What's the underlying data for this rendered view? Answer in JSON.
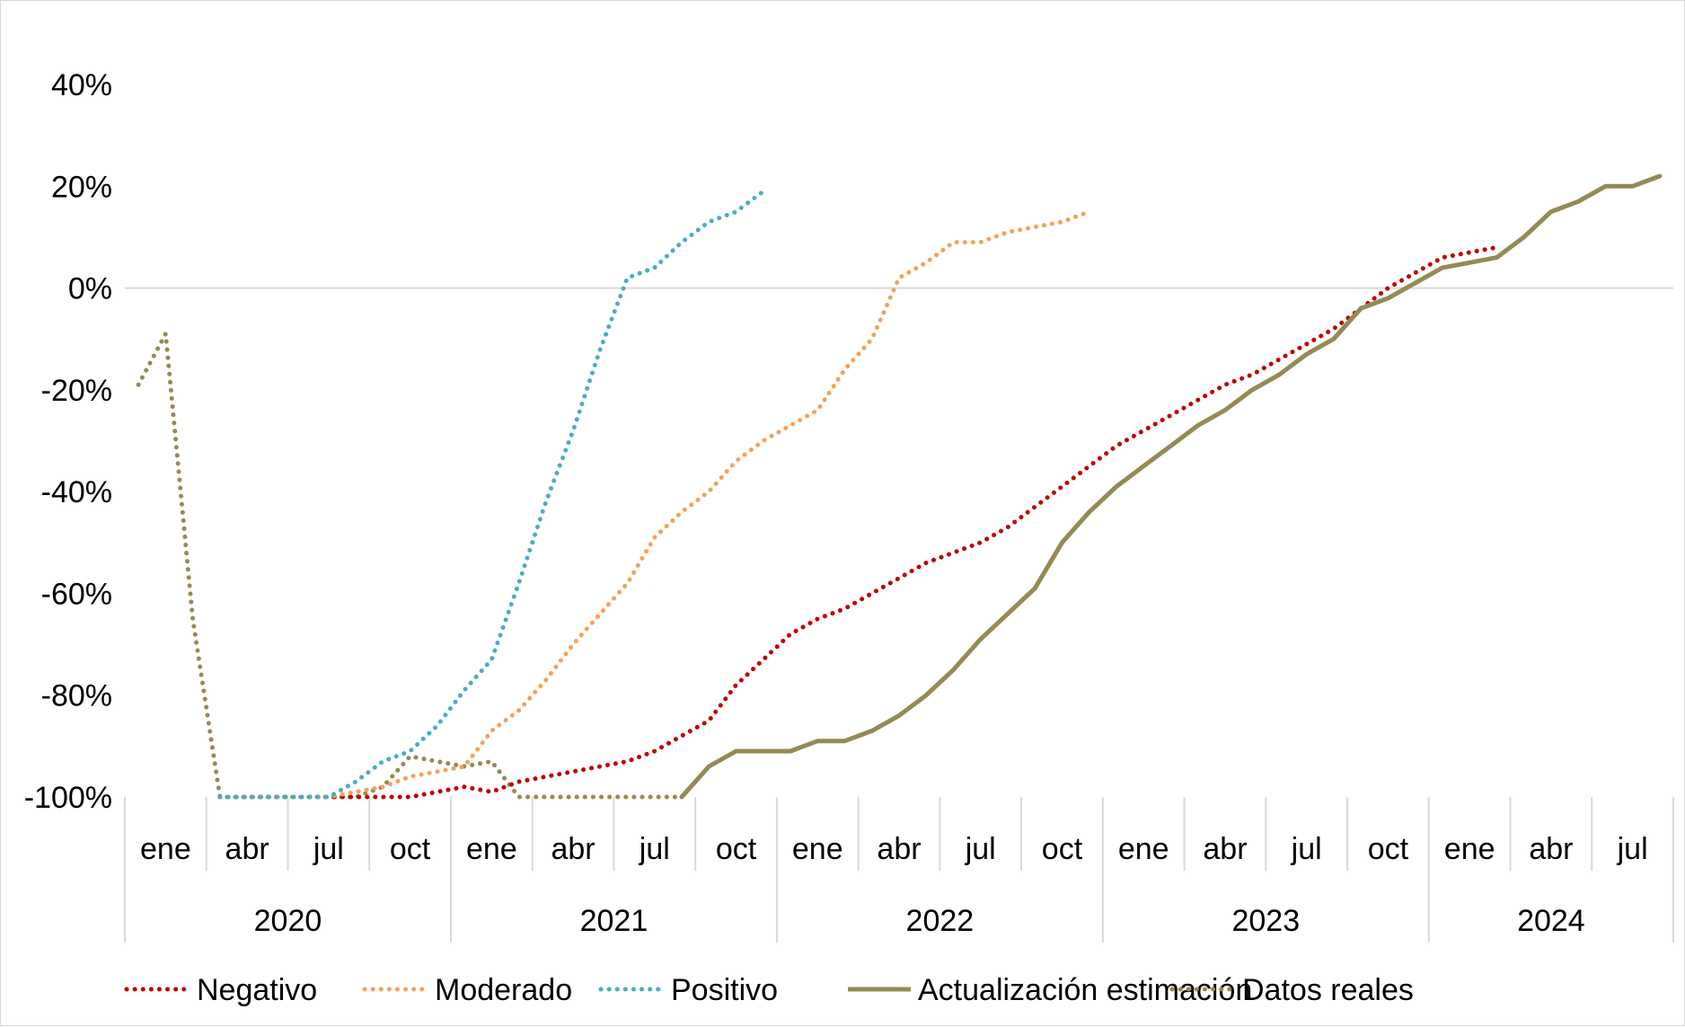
{
  "chart_data": {
    "type": "line",
    "title": "",
    "xlabel": "",
    "ylabel": "",
    "ylim": [
      -100,
      40
    ],
    "yticks": [
      {
        "value": 40,
        "label": "40%"
      },
      {
        "value": 20,
        "label": "20%"
      },
      {
        "value": 0,
        "label": "0%"
      },
      {
        "value": -20,
        "label": "-20%"
      },
      {
        "value": -40,
        "label": "-40%"
      },
      {
        "value": -60,
        "label": "-60%"
      },
      {
        "value": -80,
        "label": "-80%"
      },
      {
        "value": -100,
        "label": "-100%"
      }
    ],
    "x_start": "2020-01",
    "x_end": "2024-09",
    "month_ticks": [
      {
        "month": "2020-01",
        "label": "ene"
      },
      {
        "month": "2020-04",
        "label": "abr"
      },
      {
        "month": "2020-07",
        "label": "jul"
      },
      {
        "month": "2020-10",
        "label": "oct"
      },
      {
        "month": "2021-01",
        "label": "ene"
      },
      {
        "month": "2021-04",
        "label": "abr"
      },
      {
        "month": "2021-07",
        "label": "jul"
      },
      {
        "month": "2021-10",
        "label": "oct"
      },
      {
        "month": "2022-01",
        "label": "ene"
      },
      {
        "month": "2022-04",
        "label": "abr"
      },
      {
        "month": "2022-07",
        "label": "jul"
      },
      {
        "month": "2022-10",
        "label": "oct"
      },
      {
        "month": "2023-01",
        "label": "ene"
      },
      {
        "month": "2023-04",
        "label": "abr"
      },
      {
        "month": "2023-07",
        "label": "jul"
      },
      {
        "month": "2023-10",
        "label": "oct"
      },
      {
        "month": "2024-01",
        "label": "ene"
      },
      {
        "month": "2024-04",
        "label": "abr"
      },
      {
        "month": "2024-07",
        "label": "jul"
      }
    ],
    "years": [
      "2020",
      "2021",
      "2022",
      "2023",
      "2024"
    ],
    "legend_position": "bottom",
    "series": [
      {
        "name": "Negativo",
        "color": "#c00000",
        "style": "dotted",
        "points": [
          [
            "2020-04",
            -100
          ],
          [
            "2020-05",
            -100
          ],
          [
            "2020-06",
            -100
          ],
          [
            "2020-07",
            -100
          ],
          [
            "2020-08",
            -100
          ],
          [
            "2020-09",
            -100
          ],
          [
            "2020-10",
            -100
          ],
          [
            "2020-11",
            -100
          ],
          [
            "2020-12",
            -99
          ],
          [
            "2021-01",
            -98
          ],
          [
            "2021-02",
            -99
          ],
          [
            "2021-03",
            -97
          ],
          [
            "2021-04",
            -96
          ],
          [
            "2021-05",
            -95
          ],
          [
            "2021-06",
            -94
          ],
          [
            "2021-07",
            -93
          ],
          [
            "2021-08",
            -91
          ],
          [
            "2021-09",
            -88
          ],
          [
            "2021-10",
            -85
          ],
          [
            "2021-11",
            -78
          ],
          [
            "2021-12",
            -73
          ],
          [
            "2022-01",
            -68
          ],
          [
            "2022-02",
            -65
          ],
          [
            "2022-03",
            -63
          ],
          [
            "2022-04",
            -60
          ],
          [
            "2022-05",
            -57
          ],
          [
            "2022-06",
            -54
          ],
          [
            "2022-07",
            -52
          ],
          [
            "2022-08",
            -50
          ],
          [
            "2022-09",
            -47
          ],
          [
            "2022-10",
            -43
          ],
          [
            "2022-11",
            -39
          ],
          [
            "2022-12",
            -35
          ],
          [
            "2023-01",
            -31
          ],
          [
            "2023-02",
            -28
          ],
          [
            "2023-03",
            -25
          ],
          [
            "2023-04",
            -22
          ],
          [
            "2023-05",
            -19
          ],
          [
            "2023-06",
            -17
          ],
          [
            "2023-07",
            -14
          ],
          [
            "2023-08",
            -11
          ],
          [
            "2023-09",
            -8
          ],
          [
            "2023-10",
            -4
          ],
          [
            "2023-11",
            0
          ],
          [
            "2023-12",
            3
          ],
          [
            "2024-01",
            6
          ],
          [
            "2024-02",
            7
          ],
          [
            "2024-03",
            8
          ]
        ]
      },
      {
        "name": "Moderado",
        "color": "#f4a259",
        "style": "dotted",
        "points": [
          [
            "2020-04",
            -100
          ],
          [
            "2020-05",
            -100
          ],
          [
            "2020-06",
            -100
          ],
          [
            "2020-07",
            -100
          ],
          [
            "2020-08",
            -100
          ],
          [
            "2020-09",
            -99
          ],
          [
            "2020-10",
            -98
          ],
          [
            "2020-11",
            -96
          ],
          [
            "2020-12",
            -95
          ],
          [
            "2021-01",
            -94
          ],
          [
            "2021-02",
            -87
          ],
          [
            "2021-03",
            -83
          ],
          [
            "2021-04",
            -77
          ],
          [
            "2021-05",
            -70
          ],
          [
            "2021-06",
            -64
          ],
          [
            "2021-07",
            -58
          ],
          [
            "2021-08",
            -49
          ],
          [
            "2021-09",
            -44
          ],
          [
            "2021-10",
            -40
          ],
          [
            "2021-11",
            -34
          ],
          [
            "2021-12",
            -30
          ],
          [
            "2022-01",
            -27
          ],
          [
            "2022-02",
            -24
          ],
          [
            "2022-03",
            -16
          ],
          [
            "2022-04",
            -10
          ],
          [
            "2022-05",
            2
          ],
          [
            "2022-06",
            5
          ],
          [
            "2022-07",
            9
          ],
          [
            "2022-08",
            9
          ],
          [
            "2022-09",
            11
          ],
          [
            "2022-10",
            12
          ],
          [
            "2022-11",
            13
          ],
          [
            "2022-12",
            15
          ]
        ]
      },
      {
        "name": "Positivo",
        "color": "#4bacc6",
        "style": "dotted",
        "points": [
          [
            "2020-04",
            -100
          ],
          [
            "2020-05",
            -100
          ],
          [
            "2020-06",
            -100
          ],
          [
            "2020-07",
            -100
          ],
          [
            "2020-08",
            -100
          ],
          [
            "2020-09",
            -97
          ],
          [
            "2020-10",
            -93
          ],
          [
            "2020-11",
            -91
          ],
          [
            "2020-12",
            -86
          ],
          [
            "2021-01",
            -79
          ],
          [
            "2021-02",
            -73
          ],
          [
            "2021-03",
            -58
          ],
          [
            "2021-04",
            -42
          ],
          [
            "2021-05",
            -28
          ],
          [
            "2021-06",
            -12
          ],
          [
            "2021-07",
            2
          ],
          [
            "2021-08",
            4
          ],
          [
            "2021-09",
            9
          ],
          [
            "2021-10",
            13
          ],
          [
            "2021-11",
            15
          ],
          [
            "2021-12",
            19
          ]
        ]
      },
      {
        "name": "Actualización estimación",
        "color": "#948a54",
        "style": "solid",
        "points": [
          [
            "2021-09",
            -100
          ],
          [
            "2021-10",
            -94
          ],
          [
            "2021-11",
            -91
          ],
          [
            "2021-12",
            -91
          ],
          [
            "2022-01",
            -91
          ],
          [
            "2022-02",
            -89
          ],
          [
            "2022-03",
            -89
          ],
          [
            "2022-04",
            -87
          ],
          [
            "2022-05",
            -84
          ],
          [
            "2022-06",
            -80
          ],
          [
            "2022-07",
            -75
          ],
          [
            "2022-08",
            -69
          ],
          [
            "2022-09",
            -64
          ],
          [
            "2022-10",
            -59
          ],
          [
            "2022-11",
            -50
          ],
          [
            "2022-12",
            -44
          ],
          [
            "2023-01",
            -39
          ],
          [
            "2023-02",
            -35
          ],
          [
            "2023-03",
            -31
          ],
          [
            "2023-04",
            -27
          ],
          [
            "2023-05",
            -24
          ],
          [
            "2023-06",
            -20
          ],
          [
            "2023-07",
            -17
          ],
          [
            "2023-08",
            -13
          ],
          [
            "2023-09",
            -10
          ],
          [
            "2023-10",
            -4
          ],
          [
            "2023-11",
            -2
          ],
          [
            "2023-12",
            1
          ],
          [
            "2024-01",
            4
          ],
          [
            "2024-02",
            5
          ],
          [
            "2024-03",
            6
          ],
          [
            "2024-04",
            10
          ],
          [
            "2024-05",
            15
          ],
          [
            "2024-06",
            17
          ],
          [
            "2024-07",
            20
          ],
          [
            "2024-08",
            20
          ],
          [
            "2024-09",
            22
          ]
        ]
      },
      {
        "name": "Datos reales",
        "color": "#948a54",
        "style": "dotted",
        "points": [
          [
            "2020-01",
            -19
          ],
          [
            "2020-02",
            -9
          ],
          [
            "2020-03",
            -65
          ],
          [
            "2020-04",
            -100
          ],
          [
            "2020-05",
            -100
          ],
          [
            "2020-06",
            -100
          ],
          [
            "2020-07",
            -100
          ],
          [
            "2020-08",
            -100
          ],
          [
            "2020-09",
            -100
          ],
          [
            "2020-10",
            -98
          ],
          [
            "2020-11",
            -92
          ],
          [
            "2020-12",
            -93
          ],
          [
            "2021-01",
            -94
          ],
          [
            "2021-02",
            -93
          ],
          [
            "2021-03",
            -100
          ],
          [
            "2021-04",
            -100
          ],
          [
            "2021-05",
            -100
          ],
          [
            "2021-06",
            -100
          ],
          [
            "2021-07",
            -100
          ],
          [
            "2021-08",
            -100
          ],
          [
            "2021-09",
            -100
          ]
        ]
      }
    ]
  }
}
